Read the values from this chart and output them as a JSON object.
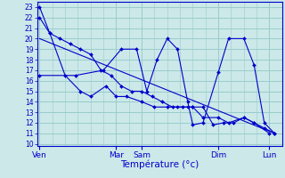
{
  "title": "Température (°c)",
  "ylim": [
    9.8,
    23.5
  ],
  "yticks": [
    10,
    11,
    12,
    13,
    14,
    15,
    16,
    17,
    18,
    19,
    20,
    21,
    22,
    23
  ],
  "background_color": "#cce8e8",
  "grid_color": "#99cccc",
  "line_color": "#0000cc",
  "tick_positions": [
    0,
    3,
    4,
    7,
    9
  ],
  "tick_labels": [
    "Ven",
    "Mar",
    "Sam",
    "Dim",
    "Lun"
  ],
  "xlim": [
    -0.1,
    9.5
  ],
  "lines": [
    {
      "x": [
        0,
        0.4,
        0.8,
        1.2,
        1.6,
        2.0,
        2.4,
        2.8,
        3.2,
        3.6,
        4.0,
        4.4,
        4.8,
        5.2,
        5.6,
        6.0,
        6.4,
        6.8,
        7.2,
        7.6,
        8.0,
        8.4,
        8.8,
        9.2
      ],
      "y": [
        23,
        20.5,
        20.0,
        19.5,
        19.0,
        18.5,
        17.0,
        16.5,
        15.5,
        15.0,
        15.0,
        14.5,
        14.0,
        13.5,
        13.5,
        13.5,
        13.5,
        11.8,
        12.0,
        12.0,
        12.5,
        12.0,
        11.5,
        11.0
      ],
      "has_markers": true
    },
    {
      "x": [
        0,
        0.4,
        1.0,
        1.6,
        2.0,
        2.6,
        3.0,
        3.4,
        4.0,
        4.5,
        5.0,
        5.4,
        5.8,
        6.0,
        6.4,
        7.0,
        7.4,
        8.0,
        8.4,
        9.0
      ],
      "y": [
        22,
        20.5,
        16.5,
        15.0,
        14.5,
        15.5,
        14.5,
        14.5,
        14.0,
        13.5,
        13.5,
        13.5,
        13.5,
        13.5,
        12.5,
        12.5,
        12.0,
        12.5,
        12.0,
        11.0
      ],
      "has_markers": true
    },
    {
      "x": [
        0,
        1.4,
        2.5,
        3.2,
        3.8,
        4.2,
        4.6,
        5.0,
        5.4,
        5.8,
        6.0,
        6.4,
        7.0,
        7.4,
        8.0,
        8.4,
        8.8,
        9.2
      ],
      "y": [
        16.5,
        16.5,
        17.0,
        19.0,
        19.0,
        15.0,
        18.0,
        20.0,
        19.0,
        14.0,
        11.8,
        12.0,
        16.8,
        20.0,
        20.0,
        17.5,
        12.0,
        11.0
      ],
      "has_markers": true
    },
    {
      "x": [
        0,
        9.2
      ],
      "y": [
        20.0,
        11.0
      ],
      "has_markers": false
    }
  ]
}
